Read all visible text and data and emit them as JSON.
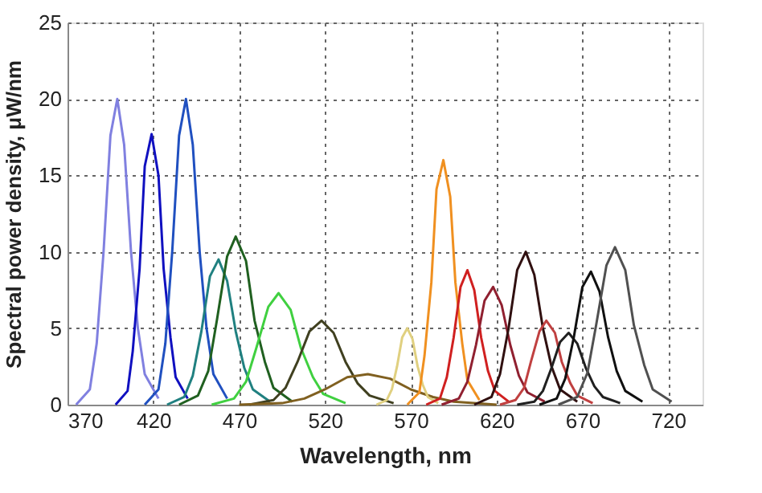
{
  "chart_data": {
    "type": "line",
    "xlabel": "Wavelength, nm",
    "ylabel": "Spectral power density, μW/nm",
    "xlim": [
      370,
      740
    ],
    "xticks": [
      370,
      420,
      470,
      520,
      570,
      620,
      670,
      720
    ],
    "ylim": [
      0,
      25
    ],
    "yticks": [
      0,
      5,
      10,
      15,
      20,
      25
    ],
    "grid": true,
    "legend": false,
    "marker": "none",
    "line_style": "solid",
    "series": [
      {
        "color": "#8080e0",
        "x": [
          375,
          383,
          387,
          391,
          395,
          399,
          403,
          407,
          411,
          415,
          423
        ],
        "values": [
          0,
          1,
          4,
          10,
          17.6,
          20,
          17,
          10,
          5,
          2,
          0.4
        ]
      },
      {
        "color": "#1010c0",
        "x": [
          398,
          405,
          408,
          412,
          415,
          419,
          423,
          426,
          430,
          433,
          440
        ],
        "values": [
          0,
          0.9,
          3.5,
          8.9,
          15.6,
          17.7,
          15,
          8.9,
          4.4,
          1.8,
          0.4
        ]
      },
      {
        "color": "#2050c0",
        "x": [
          415,
          423,
          427,
          431,
          435,
          439,
          443,
          447,
          451,
          455,
          463
        ],
        "values": [
          0,
          1,
          4,
          10,
          17.6,
          20,
          17,
          10,
          5,
          2,
          0.4
        ]
      },
      {
        "color": "#208080",
        "x": [
          428,
          438,
          443,
          448,
          453,
          458,
          463,
          468,
          473,
          478,
          488
        ],
        "values": [
          0,
          0.5,
          1.9,
          4.8,
          8.4,
          9.5,
          8.1,
          4.8,
          2.4,
          1,
          0.2
        ]
      },
      {
        "color": "#206020",
        "x": [
          435,
          446,
          452,
          457,
          463,
          468,
          474,
          479,
          485,
          490,
          501
        ],
        "values": [
          0,
          0.6,
          2.2,
          5.5,
          9.7,
          11,
          9.4,
          5.5,
          2.8,
          1.1,
          0.2
        ]
      },
      {
        "color": "#40d040",
        "x": [
          454,
          467,
          474,
          480,
          487,
          493,
          500,
          506,
          513,
          519,
          532
        ],
        "values": [
          0,
          0.4,
          1.5,
          3.7,
          6.4,
          7.3,
          6.2,
          3.7,
          1.8,
          0.7,
          0.1
        ]
      },
      {
        "color": "#404020",
        "x": [
          476,
          490,
          497,
          504,
          511,
          518,
          525,
          532,
          539,
          546,
          560
        ],
        "values": [
          0,
          0.3,
          1.1,
          2.8,
          4.8,
          5.5,
          4.7,
          2.8,
          1.4,
          0.6,
          0.1
        ]
      },
      {
        "color": "#806020",
        "x": [
          470,
          495,
          508,
          520,
          533,
          545,
          558,
          570,
          583,
          595,
          620
        ],
        "values": [
          0,
          0.1,
          0.4,
          1,
          1.8,
          2,
          1.7,
          1,
          0.5,
          0.2,
          0
        ]
      },
      {
        "color": "#e0d080",
        "x": [
          550,
          556,
          559,
          562,
          565,
          568,
          571,
          574,
          577,
          580,
          586
        ],
        "values": [
          0,
          0.3,
          1,
          2.5,
          4.4,
          5,
          4.3,
          2.5,
          1.3,
          0.5,
          0.1
        ]
      },
      {
        "color": "#f09020",
        "x": [
          568,
          575,
          578,
          582,
          585,
          589,
          593,
          596,
          600,
          603,
          610
        ],
        "values": [
          0,
          0.8,
          3.2,
          8,
          14.1,
          16,
          13.6,
          8,
          4,
          1.6,
          0.3
        ]
      },
      {
        "color": "#d02020",
        "x": [
          579,
          587,
          591,
          595,
          599,
          603,
          607,
          611,
          615,
          619,
          627
        ],
        "values": [
          0,
          0.4,
          1.8,
          4.4,
          7.7,
          8.8,
          7.5,
          4.4,
          2.2,
          0.9,
          0.2
        ]
      },
      {
        "color": "#902030",
        "x": [
          588,
          598,
          603,
          608,
          613,
          618,
          623,
          628,
          633,
          638,
          648
        ],
        "values": [
          0,
          0.4,
          1.5,
          3.9,
          6.8,
          7.7,
          6.5,
          3.9,
          1.9,
          0.8,
          0.2
        ]
      },
      {
        "color": "#301010",
        "x": [
          607,
          617,
          622,
          627,
          632,
          637,
          642,
          647,
          652,
          657,
          667
        ],
        "values": [
          0,
          0.5,
          2,
          5,
          8.8,
          10,
          8.5,
          5,
          2.5,
          1,
          0.2
        ]
      },
      {
        "color": "#c04040",
        "x": [
          622,
          631,
          636,
          640,
          645,
          649,
          654,
          658,
          663,
          667,
          676
        ],
        "values": [
          0,
          0.3,
          1.1,
          2.8,
          4.8,
          5.5,
          4.7,
          2.8,
          1.4,
          0.6,
          0.1
        ]
      },
      {
        "color": "#202020",
        "x": [
          632,
          642,
          647,
          652,
          657,
          662,
          667,
          672,
          677,
          682,
          692
        ],
        "values": [
          0,
          0.2,
          0.9,
          2.4,
          4.1,
          4.7,
          4,
          2.4,
          1.2,
          0.5,
          0.1
        ]
      },
      {
        "color": "#101010",
        "x": [
          645,
          655,
          660,
          665,
          670,
          675,
          680,
          685,
          690,
          695,
          705
        ],
        "values": [
          0,
          0.4,
          1.7,
          4.4,
          7.7,
          8.7,
          7.4,
          4.4,
          2.2,
          0.9,
          0.2
        ]
      },
      {
        "color": "#505050",
        "x": [
          656,
          667,
          673,
          678,
          684,
          689,
          695,
          700,
          706,
          711,
          722
        ],
        "values": [
          0,
          0.5,
          2.1,
          5.2,
          9.1,
          10.3,
          8.8,
          5.2,
          2.6,
          1,
          0.2
        ]
      }
    ]
  }
}
